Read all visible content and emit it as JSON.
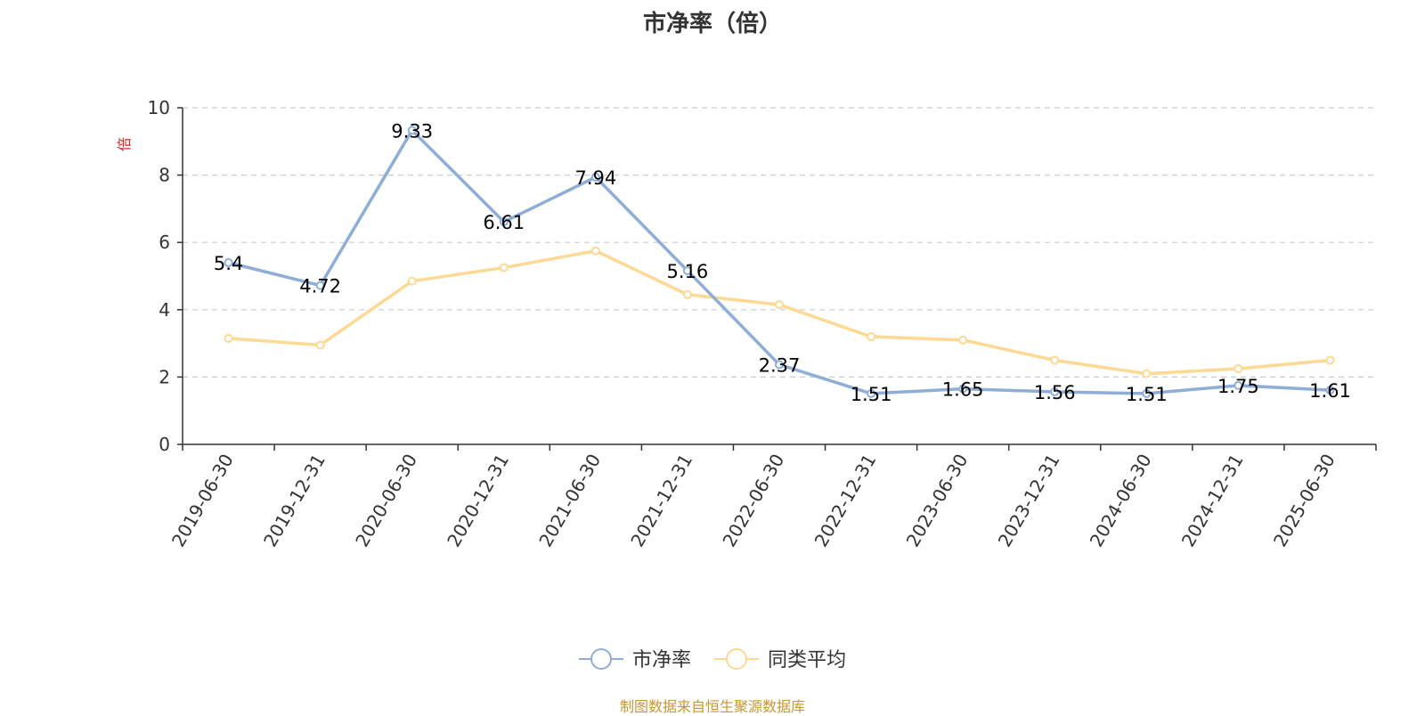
{
  "chart_data": {
    "type": "line",
    "title": "市净率（倍）",
    "ylabel": "倍",
    "ylim": [
      0,
      10
    ],
    "yticks": [
      0,
      2,
      4,
      6,
      8,
      10
    ],
    "grid": true,
    "legend_position": "bottom-center",
    "categories": [
      "2019-06-30",
      "2019-12-31",
      "2020-06-30",
      "2020-12-31",
      "2021-06-30",
      "2021-12-31",
      "2022-06-30",
      "2022-12-31",
      "2023-06-30",
      "2023-12-31",
      "2024-06-30",
      "2024-12-31",
      "2025-06-30"
    ],
    "series": [
      {
        "name": "市净率",
        "color": "#8eaed8",
        "values": [
          5.4,
          4.72,
          9.33,
          6.61,
          7.94,
          5.16,
          2.37,
          1.51,
          1.65,
          1.56,
          1.51,
          1.75,
          1.61
        ],
        "data_labels": [
          "5.4",
          "4.72",
          "9.33",
          "6.61",
          "7.94",
          "5.16",
          "2.37",
          "1.51",
          "1.65",
          "1.56",
          "1.51",
          "1.75",
          "1.61"
        ]
      },
      {
        "name": "同类平均",
        "color": "#fdd993",
        "values": [
          3.15,
          2.95,
          4.85,
          5.25,
          5.75,
          4.45,
          4.15,
          3.2,
          3.1,
          2.5,
          2.1,
          2.25,
          2.5
        ]
      }
    ]
  },
  "source_note": "制图数据来自恒生聚源数据库"
}
